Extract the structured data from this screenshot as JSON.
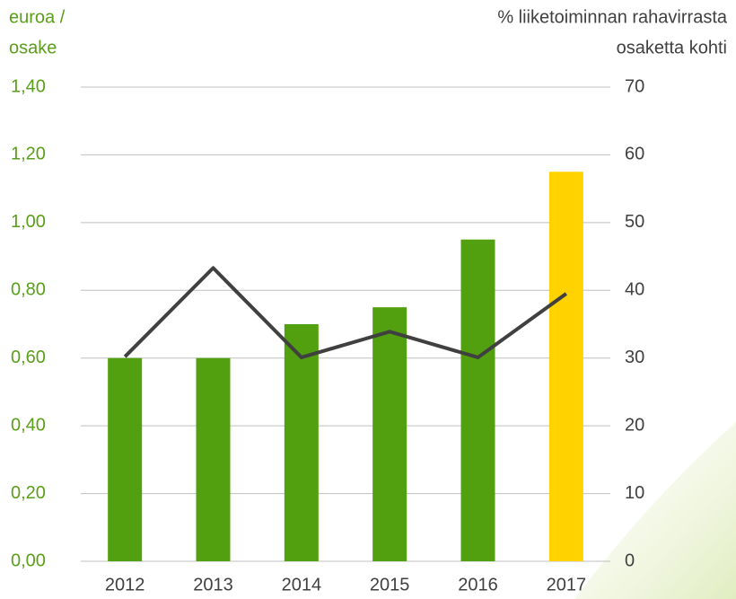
{
  "chart_data": {
    "type": "bar",
    "ylabel": [
      "euroa /",
      "osake"
    ],
    "y2label": [
      "% liiketoiminnan rahavirrasta",
      "osaketta kohti"
    ],
    "categories": [
      "2012",
      "2013",
      "2014",
      "2015",
      "2016",
      "2017"
    ],
    "series": [
      {
        "type": "bar",
        "colors": [
          "#52a00f",
          "#52a00f",
          "#52a00f",
          "#52a00f",
          "#52a00f",
          "#ffd200"
        ],
        "values": [
          0.6,
          0.6,
          0.7,
          0.75,
          0.95,
          1.15
        ]
      },
      {
        "type": "line",
        "axis": "y2",
        "color": "#404040",
        "values": [
          30.2,
          43.3,
          30.1,
          33.9,
          30.1,
          39.5
        ]
      }
    ],
    "ylim": [
      0,
      1.4
    ],
    "yticks": [
      {
        "value": 0,
        "label": "0,00"
      },
      {
        "value": 0.2,
        "label": "0,20"
      },
      {
        "value": 0.4,
        "label": "0,40"
      },
      {
        "value": 0.6,
        "label": "0,60"
      },
      {
        "value": 0.8,
        "label": "0,80"
      },
      {
        "value": 1.0,
        "label": "1,00"
      },
      {
        "value": 1.2,
        "label": "1,20"
      },
      {
        "value": 1.4,
        "label": "1,40"
      }
    ],
    "y2lim": [
      0,
      70
    ],
    "y2ticks": [
      0,
      10,
      20,
      30,
      40,
      50,
      60,
      70
    ],
    "grid": true
  }
}
